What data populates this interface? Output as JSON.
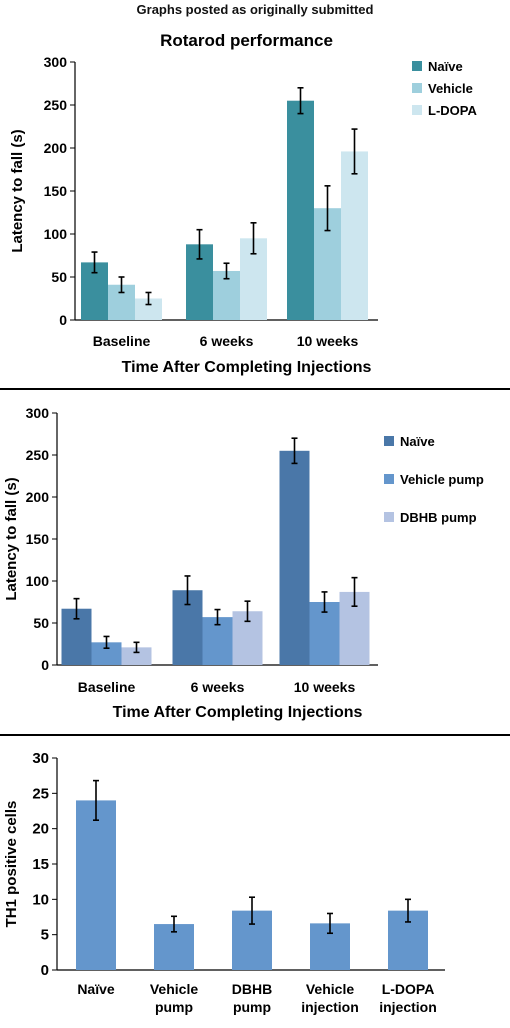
{
  "header": "Graphs posted as originally submitted",
  "chart_data": [
    {
      "type": "bar",
      "title": "Rotarod performance",
      "xlabel": "Time After Completing Injections",
      "ylabel": "Latency to fall (s)",
      "ylim": [
        0,
        300
      ],
      "yticks": [
        "0",
        "50",
        "100",
        "150",
        "200",
        "250",
        "300"
      ],
      "categories": [
        "Baseline",
        "6 weeks",
        "10 weeks"
      ],
      "series": [
        {
          "name": "Naïve",
          "color": "#3a8f9e",
          "values": [
            67,
            88,
            255
          ],
          "errors": [
            12,
            17,
            15
          ]
        },
        {
          "name": "Vehicle",
          "color": "#9ecfdd",
          "values": [
            41,
            57,
            130
          ],
          "errors": [
            9,
            9,
            26
          ]
        },
        {
          "name": "L-DOPA",
          "color": "#cde6ef",
          "values": [
            25,
            95,
            196
          ],
          "errors": [
            7,
            18,
            26
          ]
        }
      ],
      "legend": "top-right"
    },
    {
      "type": "bar",
      "title": "",
      "xlabel": "Time After Completing Injections",
      "ylabel": "Latency to fall (s)",
      "ylim": [
        0,
        300
      ],
      "yticks": [
        "0",
        "50",
        "100",
        "150",
        "200",
        "250",
        "300"
      ],
      "categories": [
        "Baseline",
        "6 weeks",
        "10 weeks"
      ],
      "series": [
        {
          "name": "Naïve",
          "color": "#4a77a8",
          "values": [
            67,
            89,
            255
          ],
          "errors": [
            12,
            17,
            15
          ]
        },
        {
          "name": "Vehicle pump",
          "color": "#6496cc",
          "values": [
            27,
            57,
            75
          ],
          "errors": [
            7,
            9,
            12
          ]
        },
        {
          "name": "DBHB pump",
          "color": "#b4c3e2",
          "values": [
            21,
            64,
            87
          ],
          "errors": [
            6,
            12,
            17
          ]
        }
      ],
      "legend": "top-right"
    },
    {
      "type": "bar",
      "title": "",
      "xlabel": "",
      "ylabel": "TH1 positive cells",
      "ylim": [
        0,
        30
      ],
      "yticks": [
        "0",
        "5",
        "10",
        "15",
        "20",
        "25",
        "30"
      ],
      "categories": [
        "Naïve",
        "Vehicle\npump",
        "DBHB\npump",
        "Vehicle\ninjection",
        "L-DOPA\ninjection"
      ],
      "series": [
        {
          "color": "#6496cc",
          "values": [
            24,
            6.5,
            8.4,
            6.6,
            8.4
          ],
          "errors": [
            2.8,
            1.1,
            1.9,
            1.4,
            1.6
          ]
        }
      ],
      "legend": "none"
    }
  ]
}
